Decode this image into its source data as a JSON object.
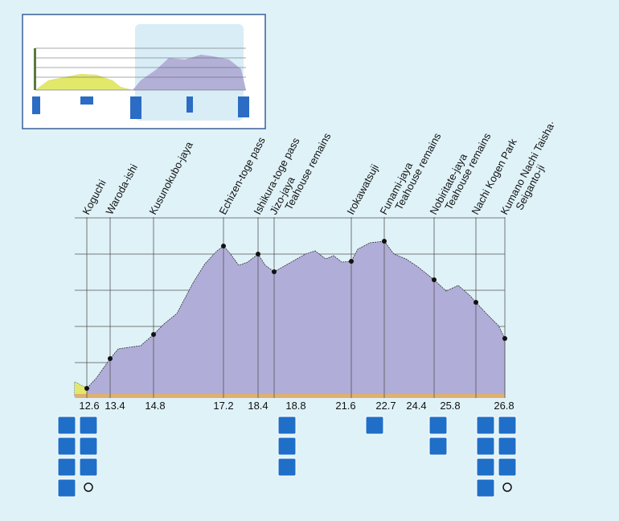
{
  "waypoints": [
    {
      "name": [
        "Koguchi"
      ],
      "distance": 12.6
    },
    {
      "name": [
        "Waroda-ishi"
      ],
      "distance": 13.4
    },
    {
      "name": [
        "Kusunokubo-jaya"
      ],
      "distance": 14.8
    },
    {
      "name": [
        "Echizen-toge pass"
      ],
      "distance": 17.2
    },
    {
      "name": [
        "Ishikura-toge pass"
      ],
      "distance": 18.4
    },
    {
      "name": [
        "Jizo-jaya",
        "Teahouse remains"
      ],
      "distance": 18.8
    },
    {
      "name": [
        "Irokawatsuji"
      ],
      "distance": 21.6
    },
    {
      "name": [
        "Funami-jaya",
        "Teahouse remains"
      ],
      "distance": 22.7
    },
    {
      "name": [
        "Nobiritate-jaya",
        "Teahouse remains"
      ],
      "distance": 24.4
    },
    {
      "name": [
        "Nachi Kogen Park"
      ],
      "distance": 25.8
    },
    {
      "name": [
        "Kumano Nachi Taisha·",
        "Seiganto-ji"
      ],
      "distance": 26.8
    }
  ]
}
